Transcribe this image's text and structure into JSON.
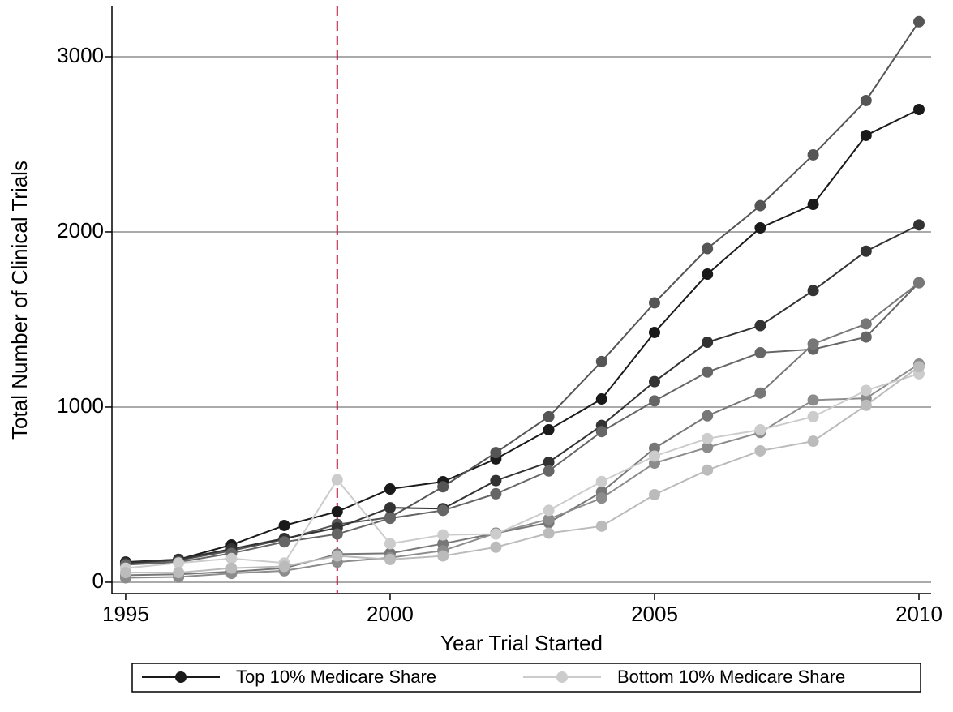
{
  "chart_data": {
    "type": "line",
    "x_label": "Year Trial Started",
    "y_label": "Total Number of Clinical Trials",
    "x": [
      1995,
      1996,
      1997,
      1998,
      1999,
      2000,
      2001,
      2002,
      2003,
      2004,
      2005,
      2006,
      2007,
      2008,
      2009,
      2010
    ],
    "series": [
      {
        "name": "Top 10% Medicare Share",
        "color": "#1a1a1a",
        "values": [
          115,
          130,
          213,
          324,
          403,
          532,
          574,
          704,
          870,
          1046,
          1426,
          1759,
          2023,
          2157,
          2551,
          2699
        ]
      },
      {
        "color": "#555555",
        "values": [
          105,
          125,
          180,
          245,
          330,
          370,
          545,
          740,
          945,
          1260,
          1595,
          1905,
          2150,
          2440,
          2750,
          3200
        ]
      },
      {
        "color": "#333333",
        "values": [
          110,
          130,
          190,
          250,
          310,
          425,
          420,
          580,
          685,
          895,
          1145,
          1370,
          1465,
          1665,
          1890,
          2040
        ]
      },
      {
        "color": "#666666",
        "values": [
          100,
          115,
          165,
          230,
          275,
          365,
          410,
          505,
          635,
          860,
          1035,
          1200,
          1310,
          1330,
          1400,
          1710
        ]
      },
      {
        "color": "#777777",
        "values": [
          40,
          45,
          60,
          80,
          160,
          165,
          220,
          280,
          340,
          515,
          765,
          950,
          1080,
          1360,
          1475,
          1710
        ]
      },
      {
        "color": "#8c8c8c",
        "values": [
          25,
          30,
          50,
          65,
          115,
          140,
          180,
          280,
          360,
          480,
          680,
          770,
          855,
          1040,
          1050,
          1245
        ]
      },
      {
        "name": "Bottom 10% Medicare Share",
        "color": "#cccccc",
        "values": [
          80,
          110,
          135,
          110,
          585,
          220,
          270,
          275,
          410,
          575,
          720,
          820,
          870,
          945,
          1095,
          1190
        ]
      },
      {
        "color": "#bbbbbb",
        "values": [
          55,
          55,
          80,
          90,
          150,
          130,
          150,
          200,
          280,
          320,
          500,
          640,
          750,
          805,
          1010,
          1230
        ]
      }
    ],
    "xlim": [
      1994.74,
      2010.23
    ],
    "xticks": [
      1995,
      2000,
      2005,
      2010
    ],
    "ylim": [
      -65,
      3287
    ],
    "yticks": [
      0,
      1000,
      2000,
      3000
    ],
    "grid": true,
    "vline": {
      "x": 1999,
      "color": "#c0143c"
    },
    "legend": "bottom"
  }
}
